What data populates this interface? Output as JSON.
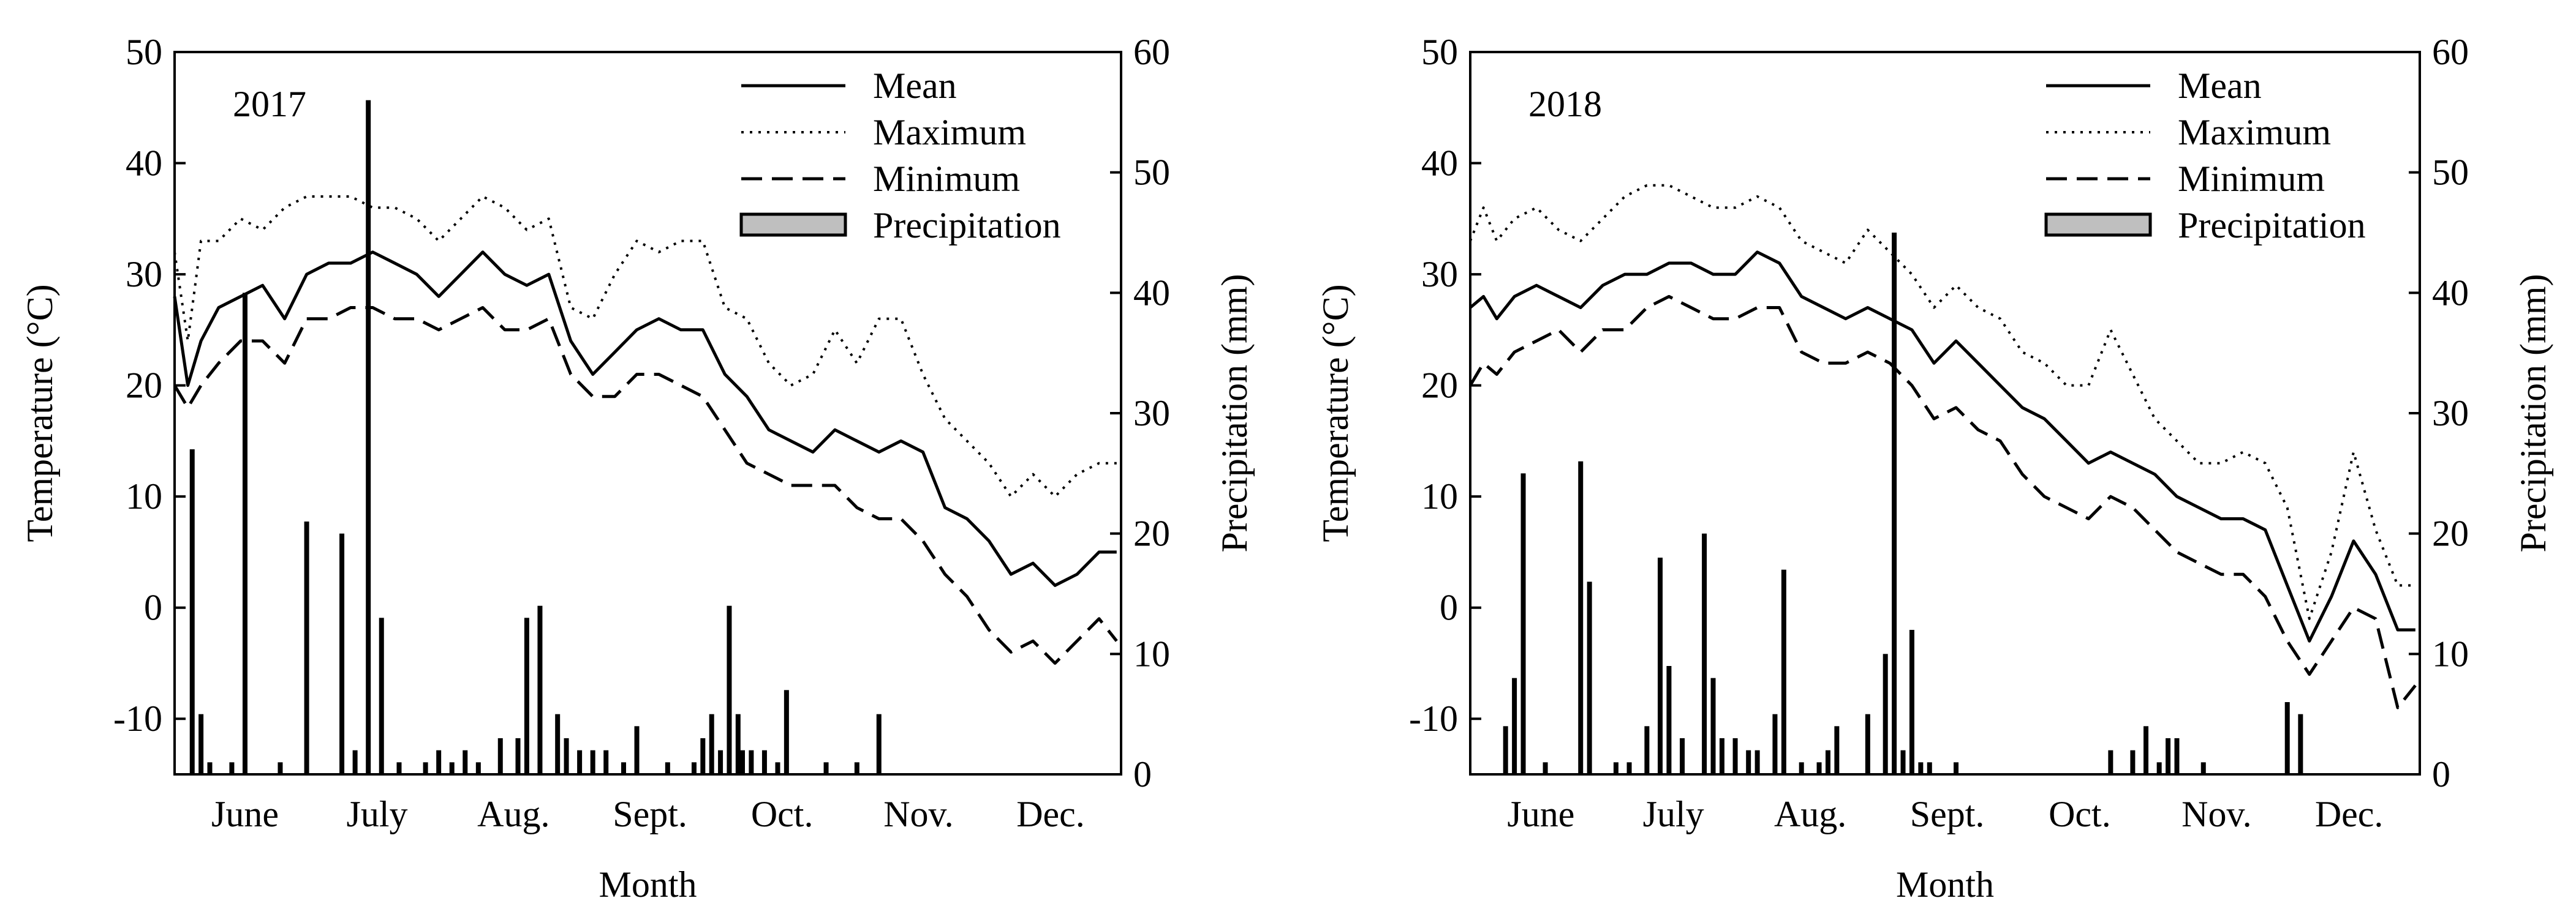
{
  "chart_data": [
    {
      "type": "line+bar",
      "label": "2017",
      "xlabel": "Month",
      "ylabel_left": "Temperature (°C)",
      "ylabel_right": "Precipitation (mm)",
      "ylim_left": [
        -15,
        50
      ],
      "ylim_right": [
        0,
        60
      ],
      "yticks_left": [
        "50",
        "40",
        "30",
        "20",
        "10",
        "0",
        "-10"
      ],
      "yticks_right": [
        "60",
        "50",
        "40",
        "30",
        "20",
        "10",
        "0"
      ],
      "xlim_days": [
        0,
        215
      ],
      "months": [
        {
          "label": "June",
          "day": 16
        },
        {
          "label": "July",
          "day": 46
        },
        {
          "label": "Aug.",
          "day": 77
        },
        {
          "label": "Sept.",
          "day": 108
        },
        {
          "label": "Oct.",
          "day": 138
        },
        {
          "label": "Nov.",
          "day": 169
        },
        {
          "label": "Dec.",
          "day": 199
        }
      ],
      "legend": [
        "Mean",
        "Maximum",
        "Minimum",
        "Precipitation"
      ],
      "series": [
        {
          "name": "Mean",
          "style": "solid",
          "x": [
            0,
            3,
            6,
            10,
            15,
            20,
            25,
            30,
            35,
            40,
            45,
            50,
            55,
            60,
            65,
            70,
            75,
            80,
            85,
            90,
            95,
            100,
            105,
            110,
            115,
            120,
            125,
            130,
            135,
            140,
            145,
            150,
            155,
            160,
            165,
            170,
            175,
            180,
            185,
            190,
            195,
            200,
            205,
            210,
            214
          ],
          "values": [
            28,
            20,
            24,
            27,
            28,
            29,
            26,
            30,
            31,
            31,
            32,
            31,
            30,
            28,
            30,
            32,
            30,
            29,
            30,
            24,
            21,
            23,
            25,
            26,
            25,
            25,
            21,
            19,
            16,
            15,
            14,
            16,
            15,
            14,
            15,
            14,
            9,
            8,
            6,
            3,
            4,
            2,
            3,
            5,
            5
          ]
        },
        {
          "name": "Maximum",
          "style": "dotted",
          "x": [
            0,
            3,
            6,
            10,
            15,
            20,
            25,
            30,
            35,
            40,
            45,
            50,
            55,
            60,
            65,
            70,
            75,
            80,
            85,
            90,
            95,
            100,
            105,
            110,
            115,
            120,
            125,
            130,
            135,
            140,
            145,
            150,
            155,
            160,
            165,
            170,
            175,
            180,
            185,
            190,
            195,
            200,
            205,
            210,
            214
          ],
          "values": [
            32,
            24,
            33,
            33,
            35,
            34,
            36,
            37,
            37,
            37,
            36,
            36,
            35,
            33,
            35,
            37,
            36,
            34,
            35,
            27,
            26,
            30,
            33,
            32,
            33,
            33,
            27,
            26,
            22,
            20,
            21,
            25,
            22,
            26,
            26,
            21,
            17,
            15,
            13,
            10,
            12,
            10,
            12,
            13,
            13
          ]
        },
        {
          "name": "Minimum",
          "style": "dashed",
          "x": [
            0,
            3,
            6,
            10,
            15,
            20,
            25,
            30,
            35,
            40,
            45,
            50,
            55,
            60,
            65,
            70,
            75,
            80,
            85,
            90,
            95,
            100,
            105,
            110,
            115,
            120,
            125,
            130,
            135,
            140,
            145,
            150,
            155,
            160,
            165,
            170,
            175,
            180,
            185,
            190,
            195,
            200,
            205,
            210,
            214
          ],
          "values": [
            20,
            18,
            20,
            22,
            24,
            24,
            22,
            26,
            26,
            27,
            27,
            26,
            26,
            25,
            26,
            27,
            25,
            25,
            26,
            21,
            19,
            19,
            21,
            21,
            20,
            19,
            16,
            13,
            12,
            11,
            11,
            11,
            9,
            8,
            8,
            6,
            3,
            1,
            -2,
            -4,
            -3,
            -5,
            -3,
            -1,
            -3
          ]
        },
        {
          "name": "Precipitation",
          "style": "bar",
          "x": [
            4,
            6,
            8,
            13,
            16,
            24,
            30,
            38,
            41,
            44,
            47,
            51,
            57,
            60,
            63,
            66,
            69,
            74,
            78,
            80,
            83,
            87,
            89,
            92,
            95,
            98,
            102,
            105,
            112,
            118,
            120,
            122,
            124,
            126,
            128,
            129,
            131,
            134,
            137,
            139,
            148,
            155,
            160
          ],
          "values": [
            27,
            5,
            1,
            1,
            40,
            1,
            21,
            20,
            2,
            56,
            13,
            1,
            1,
            2,
            1,
            2,
            1,
            3,
            3,
            13,
            14,
            5,
            3,
            2,
            2,
            2,
            1,
            4,
            1,
            1,
            3,
            5,
            2,
            14,
            5,
            2,
            2,
            2,
            1,
            7,
            1,
            1,
            5
          ]
        }
      ]
    },
    {
      "type": "line+bar",
      "label": "2018",
      "xlabel": "Month",
      "ylabel_left": "Temperature (°C)",
      "ylabel_right": "Precipitation (mm)",
      "ylim_left": [
        -15,
        50
      ],
      "ylim_right": [
        0,
        60
      ],
      "yticks_left": [
        "50",
        "40",
        "30",
        "20",
        "10",
        "0",
        "-10"
      ],
      "yticks_right": [
        "60",
        "50",
        "40",
        "30",
        "20",
        "10",
        "0"
      ],
      "xlim_days": [
        0,
        215
      ],
      "months": [
        {
          "label": "June",
          "day": 16
        },
        {
          "label": "July",
          "day": 46
        },
        {
          "label": "Aug.",
          "day": 77
        },
        {
          "label": "Sept.",
          "day": 108
        },
        {
          "label": "Oct.",
          "day": 138
        },
        {
          "label": "Nov.",
          "day": 169
        },
        {
          "label": "Dec.",
          "day": 199
        }
      ],
      "legend": [
        "Mean",
        "Maximum",
        "Minimum",
        "Precipitation"
      ],
      "series": [
        {
          "name": "Mean",
          "style": "solid",
          "x": [
            0,
            3,
            6,
            10,
            15,
            20,
            25,
            30,
            35,
            40,
            45,
            50,
            55,
            60,
            65,
            70,
            75,
            80,
            85,
            90,
            95,
            100,
            105,
            110,
            115,
            120,
            125,
            130,
            135,
            140,
            145,
            150,
            155,
            160,
            165,
            170,
            175,
            180,
            185,
            190,
            195,
            200,
            205,
            210,
            214
          ],
          "values": [
            27,
            28,
            26,
            28,
            29,
            28,
            27,
            29,
            30,
            30,
            31,
            31,
            30,
            30,
            32,
            31,
            28,
            27,
            26,
            27,
            26,
            25,
            22,
            24,
            22,
            20,
            18,
            17,
            15,
            13,
            14,
            13,
            12,
            10,
            9,
            8,
            8,
            7,
            2,
            -3,
            1,
            6,
            3,
            -2,
            -2
          ]
        },
        {
          "name": "Maximum",
          "style": "dotted",
          "x": [
            0,
            3,
            6,
            10,
            15,
            20,
            25,
            30,
            35,
            40,
            45,
            50,
            55,
            60,
            65,
            70,
            75,
            80,
            85,
            90,
            95,
            100,
            105,
            110,
            115,
            120,
            125,
            130,
            135,
            140,
            145,
            150,
            155,
            160,
            165,
            170,
            175,
            180,
            185,
            190,
            195,
            200,
            205,
            210,
            214
          ],
          "values": [
            33,
            36,
            33,
            35,
            36,
            34,
            33,
            35,
            37,
            38,
            38,
            37,
            36,
            36,
            37,
            36,
            33,
            32,
            31,
            34,
            32,
            30,
            27,
            29,
            27,
            26,
            23,
            22,
            20,
            20,
            25,
            21,
            17,
            15,
            13,
            13,
            14,
            13,
            9,
            -1,
            5,
            14,
            7,
            2,
            2
          ]
        },
        {
          "name": "Minimum",
          "style": "dashed",
          "x": [
            0,
            3,
            6,
            10,
            15,
            20,
            25,
            30,
            35,
            40,
            45,
            50,
            55,
            60,
            65,
            70,
            75,
            80,
            85,
            90,
            95,
            100,
            105,
            110,
            115,
            120,
            125,
            130,
            135,
            140,
            145,
            150,
            155,
            160,
            165,
            170,
            175,
            180,
            185,
            190,
            195,
            200,
            205,
            210,
            214
          ],
          "values": [
            20,
            22,
            21,
            23,
            24,
            25,
            23,
            25,
            25,
            27,
            28,
            27,
            26,
            26,
            27,
            27,
            23,
            22,
            22,
            23,
            22,
            20,
            17,
            18,
            16,
            15,
            12,
            10,
            9,
            8,
            10,
            9,
            7,
            5,
            4,
            3,
            3,
            1,
            -3,
            -6,
            -3,
            0,
            -1,
            -9,
            -7
          ]
        },
        {
          "name": "Precipitation",
          "style": "bar",
          "x": [
            8,
            10,
            12,
            17,
            25,
            27,
            33,
            36,
            40,
            43,
            45,
            48,
            53,
            55,
            57,
            60,
            63,
            65,
            69,
            71,
            75,
            79,
            81,
            83,
            90,
            94,
            96,
            98,
            100,
            102,
            104,
            110,
            145,
            150,
            153,
            156,
            158,
            160,
            166,
            185,
            188
          ],
          "values": [
            4,
            8,
            25,
            1,
            26,
            16,
            1,
            1,
            4,
            18,
            9,
            3,
            20,
            8,
            3,
            3,
            2,
            2,
            5,
            17,
            1,
            1,
            2,
            4,
            5,
            10,
            45,
            2,
            12,
            1,
            1,
            1,
            2,
            2,
            4,
            1,
            3,
            3,
            1,
            6,
            5
          ]
        }
      ]
    }
  ]
}
